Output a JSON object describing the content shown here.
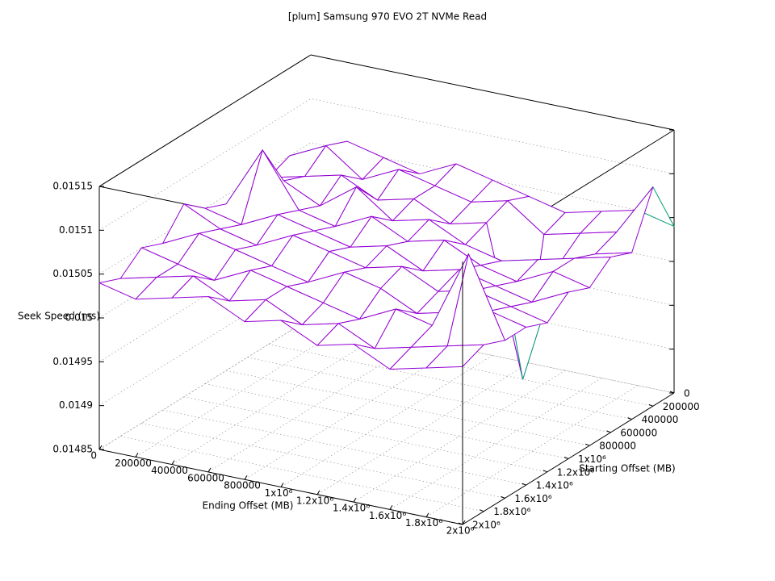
{
  "chart_data": {
    "type": "surface",
    "title": "[plum] Samsung 970 EVO 2T NVMe Read",
    "x_label": "Ending Offset (MB)",
    "y_label": "Starting Offset (MB)",
    "z_label": "Seek Speed (ms)",
    "top_color": "#9400d3",
    "bottom_color": "#009e73",
    "grid": true,
    "x": [
      0,
      200000,
      400000,
      600000,
      800000,
      1000000,
      1200000,
      1400000,
      1600000,
      1800000,
      2000000
    ],
    "y": [
      0,
      200000,
      400000,
      600000,
      800000,
      1000000,
      1200000,
      1400000,
      1600000,
      1800000,
      2000000
    ],
    "z": [
      [
        0.01504,
        0.01506,
        0.01505,
        0.01504,
        0.01506,
        0.01505,
        0.01504,
        0.01503,
        0.01504,
        0.01505,
        0.01504
      ],
      [
        0.01505,
        0.01507,
        0.01504,
        0.01506,
        0.01505,
        0.01504,
        0.01505,
        0.01502,
        0.01503,
        0.01504,
        0.0151
      ],
      [
        0.01504,
        0.01505,
        0.01506,
        0.01504,
        0.01505,
        0.01503,
        0.01504,
        0.01487,
        0.01501,
        0.01503,
        0.01504
      ],
      [
        0.01505,
        0.01506,
        0.01504,
        0.01507,
        0.01504,
        0.01505,
        0.01503,
        0.01502,
        0.01503,
        0.01504,
        0.01505
      ],
      [
        0.01504,
        0.01511,
        0.01505,
        0.01504,
        0.01506,
        0.01504,
        0.01505,
        0.01503,
        0.01502,
        0.01504,
        0.01503
      ],
      [
        0.01505,
        0.01504,
        0.01506,
        0.01505,
        0.01504,
        0.01505,
        0.01503,
        0.01504,
        0.01503,
        0.01502,
        0.01504
      ],
      [
        0.01507,
        0.01505,
        0.01504,
        0.01506,
        0.01505,
        0.01504,
        0.01505,
        0.01503,
        0.01504,
        0.01503,
        0.01502
      ],
      [
        0.01504,
        0.01506,
        0.01505,
        0.01504,
        0.01503,
        0.01505,
        0.01504,
        0.01502,
        0.01503,
        0.01504,
        0.01503
      ],
      [
        0.01505,
        0.01504,
        0.01503,
        0.01505,
        0.01504,
        0.01503,
        0.01502,
        0.01504,
        0.01503,
        0.01512,
        0.01503
      ],
      [
        0.01503,
        0.01504,
        0.01505,
        0.01503,
        0.01504,
        0.01502,
        0.01503,
        0.01501,
        0.01502,
        0.01503,
        0.01504
      ],
      [
        0.01504,
        0.01503,
        0.01504,
        0.01505,
        0.01503,
        0.01504,
        0.01502,
        0.01503,
        0.01501,
        0.01502,
        0.01503
      ]
    ],
    "xlim": [
      0,
      2000000
    ],
    "ylim": [
      0,
      2000000
    ],
    "zlim": [
      0.01485,
      0.01515
    ],
    "xticks": [
      0,
      200000,
      400000,
      600000,
      800000,
      {
        "value": 1000000,
        "label": "1x10⁶"
      },
      {
        "value": 1200000,
        "label": "1.2x10⁶"
      },
      {
        "value": 1400000,
        "label": "1.4x10⁶"
      },
      {
        "value": 1600000,
        "label": "1.6x10⁶"
      },
      {
        "value": 1800000,
        "label": "1.8x10⁶"
      },
      {
        "value": 2000000,
        "label": "2x10⁶"
      }
    ],
    "yticks": [
      0,
      200000,
      400000,
      600000,
      800000,
      {
        "value": 1000000,
        "label": "1x10⁶"
      },
      {
        "value": 1200000,
        "label": "1.2x10⁶"
      },
      {
        "value": 1400000,
        "label": "1.4x10⁶"
      },
      {
        "value": 1600000,
        "label": "1.6x10⁶"
      },
      {
        "value": 1800000,
        "label": "1.8x10⁶"
      },
      {
        "value": 2000000,
        "label": "2x10⁶"
      }
    ],
    "zticks": [
      0.01485,
      0.0149,
      0.01495,
      0.015,
      0.01505,
      0.0151,
      0.01515
    ]
  }
}
